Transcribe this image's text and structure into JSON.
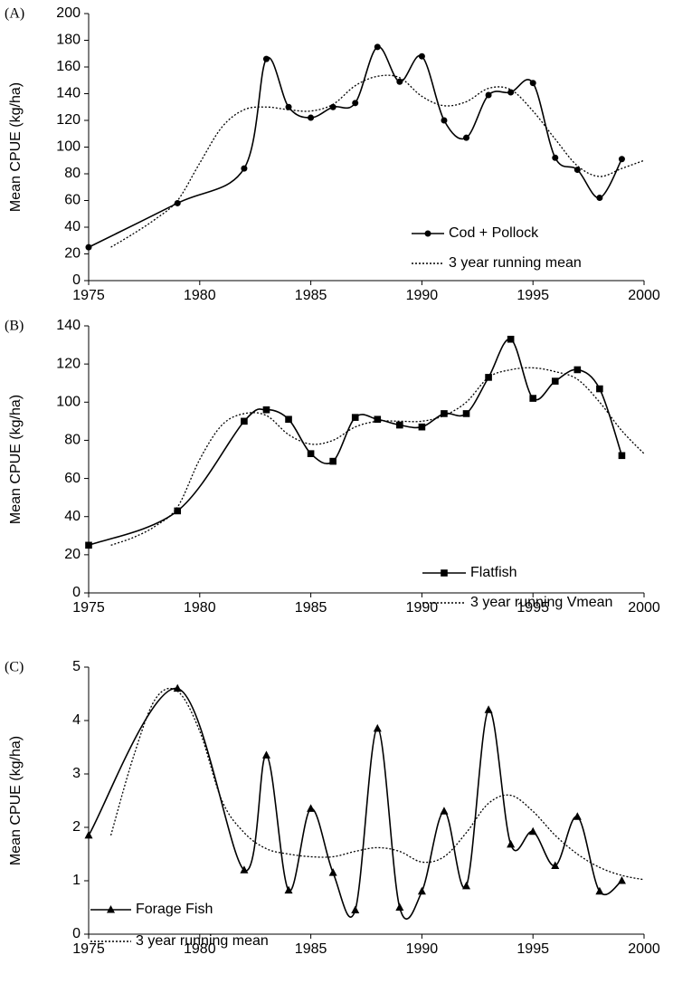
{
  "chart_data": [
    {
      "type": "line",
      "panel_label": "(A)",
      "y_label": "Mean CPUE (kg/ha)",
      "xlim": [
        1975,
        2000
      ],
      "xticks": [
        1975,
        1980,
        1985,
        1990,
        1995,
        2000
      ],
      "ylim": [
        0,
        200
      ],
      "yticks": [
        0,
        20,
        40,
        60,
        80,
        100,
        120,
        140,
        160,
        180,
        200
      ],
      "legend": "lower right",
      "series": [
        {
          "name": "Cod + Pollock",
          "color": "#000000",
          "marker": "circle",
          "line_style": "solid",
          "x": [
            1975,
            1979,
            1982,
            1983,
            1984,
            1985,
            1986,
            1987,
            1988,
            1989,
            1990,
            1991,
            1992,
            1993,
            1994,
            1995,
            1996,
            1997,
            1998,
            1999
          ],
          "values": [
            25,
            58,
            84,
            166,
            130,
            122,
            130,
            133,
            175,
            149,
            168,
            120,
            107,
            139,
            141,
            148,
            92,
            83,
            62,
            91
          ]
        },
        {
          "name": "3 year running mean",
          "color": "#000000",
          "marker": "none",
          "line_style": "dotted",
          "x": [
            1976,
            1977,
            1978,
            1979,
            1980,
            1981,
            1982,
            1983,
            1984,
            1985,
            1986,
            1987,
            1988,
            1989,
            1990,
            1991,
            1992,
            1993,
            1994,
            1995,
            1996,
            1997,
            1998,
            1999,
            2000
          ],
          "values": [
            25,
            35,
            46,
            60,
            88,
            115,
            128,
            130,
            128,
            127,
            132,
            146,
            153,
            152,
            138,
            131,
            134,
            144,
            143,
            127,
            106,
            86,
            78,
            84,
            90
          ]
        }
      ]
    },
    {
      "type": "line",
      "panel_label": "(B)",
      "y_label": "Mean CPUE (kg/ha)",
      "xlim": [
        1975,
        2000
      ],
      "xticks": [
        1975,
        1980,
        1985,
        1990,
        1995,
        2000
      ],
      "ylim": [
        0,
        140
      ],
      "yticks": [
        0,
        20,
        40,
        60,
        80,
        100,
        120,
        140
      ],
      "legend": "lower right",
      "series": [
        {
          "name": "Flatfish",
          "color": "#000000",
          "marker": "square",
          "line_style": "solid",
          "x": [
            1975,
            1979,
            1982,
            1983,
            1984,
            1985,
            1986,
            1987,
            1988,
            1989,
            1990,
            1991,
            1992,
            1993,
            1994,
            1995,
            1996,
            1997,
            1998,
            1999
          ],
          "values": [
            25,
            43,
            90,
            96,
            91,
            73,
            69,
            92,
            91,
            88,
            87,
            94,
            94,
            113,
            133,
            102,
            111,
            117,
            107,
            72
          ]
        },
        {
          "name": "3 year running Vmean",
          "color": "#000000",
          "marker": "none",
          "line_style": "dotted",
          "x": [
            1976,
            1977,
            1978,
            1979,
            1980,
            1981,
            1982,
            1983,
            1984,
            1985,
            1986,
            1987,
            1988,
            1989,
            1990,
            1991,
            1992,
            1993,
            1994,
            1995,
            1996,
            1997,
            1998,
            1999,
            2000
          ],
          "values": [
            25,
            29,
            35,
            45,
            70,
            88,
            94,
            93,
            83,
            78,
            80,
            87,
            90,
            90,
            90,
            93,
            100,
            113,
            117,
            118,
            116,
            112,
            100,
            85,
            73
          ]
        }
      ]
    },
    {
      "type": "line",
      "panel_label": "(C)",
      "y_label": "Mean CPUE (kg/ha)",
      "xlim": [
        1975,
        2000
      ],
      "xticks": [
        1975,
        1980,
        1985,
        1990,
        1995,
        2000
      ],
      "ylim": [
        0,
        5
      ],
      "yticks": [
        0,
        1,
        2,
        3,
        4,
        5
      ],
      "legend": "lower left",
      "series": [
        {
          "name": "Forage Fish",
          "color": "#000000",
          "marker": "triangle",
          "line_style": "solid",
          "x": [
            1975,
            1979,
            1982,
            1983,
            1984,
            1985,
            1986,
            1987,
            1988,
            1989,
            1990,
            1991,
            1992,
            1993,
            1994,
            1995,
            1996,
            1997,
            1998,
            1999
          ],
          "values": [
            1.85,
            4.6,
            1.2,
            3.35,
            0.82,
            2.35,
            1.15,
            0.45,
            3.85,
            0.5,
            0.8,
            2.3,
            0.9,
            4.2,
            1.68,
            1.92,
            1.28,
            2.2,
            0.8,
            1.0
          ]
        },
        {
          "name": "3 year running mean",
          "color": "#000000",
          "marker": "none",
          "line_style": "dotted",
          "x": [
            1976,
            1977,
            1978,
            1979,
            1980,
            1981,
            1982,
            1983,
            1984,
            1985,
            1986,
            1987,
            1988,
            1989,
            1990,
            1991,
            1992,
            1993,
            1994,
            1995,
            1996,
            1997,
            1998,
            1999,
            2000
          ],
          "values": [
            1.85,
            3.3,
            4.4,
            4.55,
            3.8,
            2.5,
            1.9,
            1.6,
            1.5,
            1.45,
            1.45,
            1.55,
            1.62,
            1.55,
            1.35,
            1.45,
            1.9,
            2.45,
            2.6,
            2.3,
            1.85,
            1.5,
            1.25,
            1.1,
            1.02
          ]
        }
      ]
    }
  ]
}
